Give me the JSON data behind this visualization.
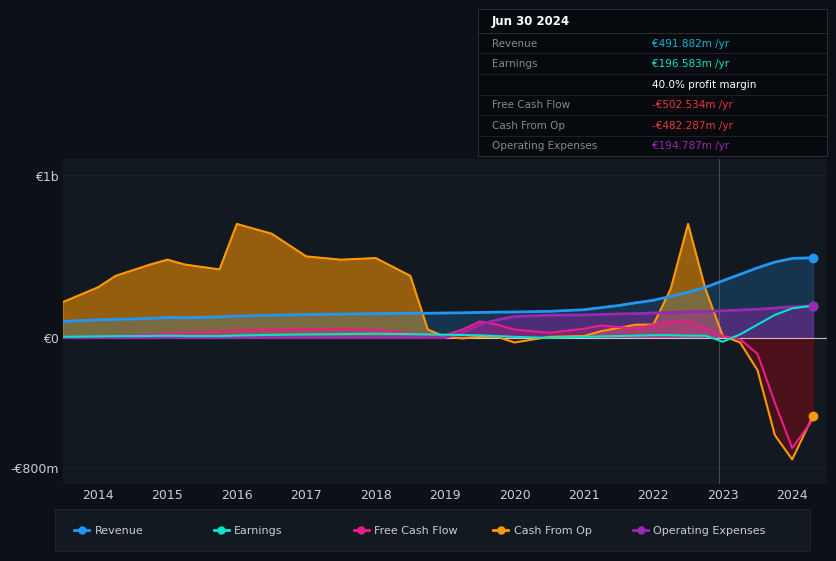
{
  "bg_color": "#0d1117",
  "plot_bg": "#131920",
  "grid_color": "#1e2a35",
  "xlim": [
    2013.5,
    2024.5
  ],
  "ylim": [
    -900,
    1100
  ],
  "yticks": [
    -800,
    0,
    1000
  ],
  "ytick_labels": [
    "-€800m",
    "€0",
    "€1b"
  ],
  "xticks": [
    2014,
    2015,
    2016,
    2017,
    2018,
    2019,
    2020,
    2021,
    2022,
    2023,
    2024
  ],
  "revenue_color": "#2196f3",
  "earnings_color": "#00e5cc",
  "fcf_color": "#e91e8c",
  "cashop_color": "#ff9800",
  "opex_color": "#9c27b0",
  "x": [
    2013.5,
    2014.0,
    2014.25,
    2014.75,
    2015.0,
    2015.25,
    2015.75,
    2016.0,
    2016.5,
    2017.0,
    2017.5,
    2018.0,
    2018.5,
    2018.75,
    2019.0,
    2019.25,
    2019.5,
    2019.75,
    2020.0,
    2020.5,
    2021.0,
    2021.25,
    2021.5,
    2021.75,
    2022.0,
    2022.25,
    2022.5,
    2022.75,
    2023.0,
    2023.25,
    2023.5,
    2023.75,
    2024.0,
    2024.3
  ],
  "cashop_y": [
    220,
    310,
    380,
    450,
    480,
    450,
    420,
    700,
    640,
    500,
    480,
    490,
    380,
    50,
    5,
    -5,
    5,
    5,
    -30,
    5,
    10,
    40,
    60,
    80,
    80,
    300,
    700,
    300,
    10,
    -30,
    -200,
    -600,
    -750,
    -482
  ],
  "revenue_y": [
    100,
    110,
    112,
    118,
    125,
    122,
    128,
    133,
    138,
    142,
    145,
    148,
    150,
    150,
    152,
    153,
    155,
    157,
    158,
    162,
    172,
    185,
    198,
    215,
    230,
    255,
    280,
    310,
    350,
    390,
    430,
    465,
    488,
    492
  ],
  "earnings_y": [
    5,
    8,
    9,
    10,
    12,
    10,
    9,
    13,
    17,
    20,
    22,
    24,
    22,
    20,
    18,
    16,
    14,
    10,
    5,
    -2,
    5,
    8,
    10,
    12,
    15,
    15,
    12,
    12,
    -25,
    20,
    80,
    140,
    180,
    197
  ],
  "fcf_y": [
    0,
    5,
    10,
    18,
    25,
    30,
    38,
    45,
    50,
    52,
    55,
    48,
    28,
    15,
    15,
    50,
    100,
    80,
    50,
    30,
    55,
    75,
    65,
    55,
    80,
    100,
    100,
    60,
    10,
    -10,
    -100,
    -400,
    -680,
    -503
  ],
  "opex_y": [
    0,
    0,
    0,
    0,
    0,
    0,
    0,
    0,
    0,
    0,
    0,
    0,
    0,
    0,
    0,
    30,
    80,
    110,
    130,
    138,
    140,
    143,
    146,
    148,
    152,
    155,
    158,
    162,
    165,
    170,
    175,
    182,
    190,
    195
  ],
  "info_title": "Jun 30 2024",
  "info_rows": [
    {
      "label": "Revenue",
      "value": "€491.882m /yr",
      "value_color": "#00bcd4"
    },
    {
      "label": "Earnings",
      "value": "€196.583m /yr",
      "value_color": "#00e5cc"
    },
    {
      "label": "",
      "value": "40.0% profit margin",
      "value_color": "#ffffff"
    },
    {
      "label": "Free Cash Flow",
      "value": "-€502.534m /yr",
      "value_color": "#e53935"
    },
    {
      "label": "Cash From Op",
      "value": "-€482.287m /yr",
      "value_color": "#e53935"
    },
    {
      "label": "Operating Expenses",
      "value": "€194.787m /yr",
      "value_color": "#9c27b0"
    }
  ],
  "legend_items": [
    {
      "label": "Revenue",
      "color": "#2196f3"
    },
    {
      "label": "Earnings",
      "color": "#00e5cc"
    },
    {
      "label": "Free Cash Flow",
      "color": "#e91e8c"
    },
    {
      "label": "Cash From Op",
      "color": "#ff9800"
    },
    {
      "label": "Operating Expenses",
      "color": "#9c27b0"
    }
  ]
}
